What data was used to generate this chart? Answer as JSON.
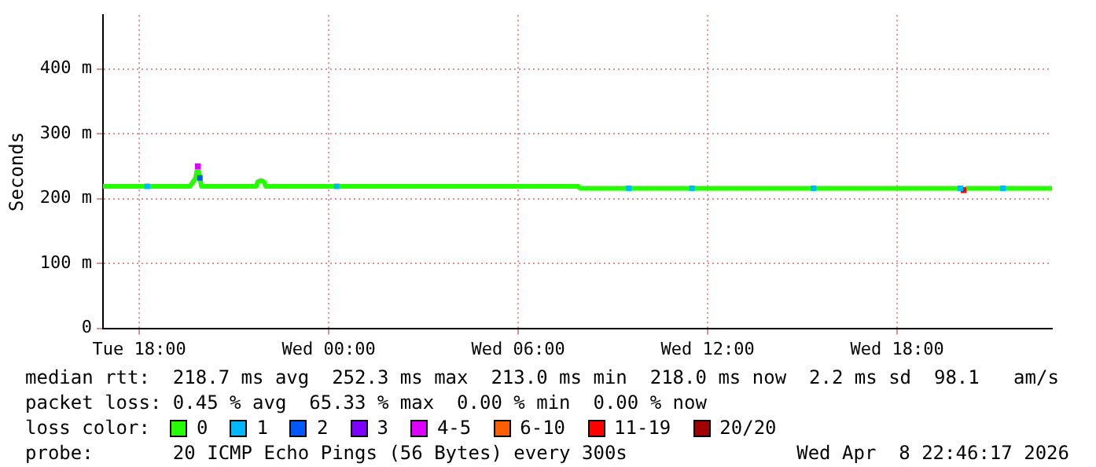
{
  "chart_data": {
    "type": "line",
    "ylabel": "Seconds",
    "xlim": [
      "2026-04-07T16:51",
      "2026-04-08T22:54"
    ],
    "ylim": [
      0,
      483
    ],
    "xticks": [
      {
        "value": "2026-04-07T18:00",
        "label": "Tue 18:00"
      },
      {
        "value": "2026-04-08T00:00",
        "label": "Wed 00:00"
      },
      {
        "value": "2026-04-08T06:00",
        "label": "Wed 06:00"
      },
      {
        "value": "2026-04-08T12:00",
        "label": "Wed 12:00"
      },
      {
        "value": "2026-04-08T18:00",
        "label": "Wed 18:00"
      }
    ],
    "yticks": [
      0,
      {
        "value": 100,
        "label": "100 m"
      },
      {
        "value": 200,
        "label": "200 m"
      },
      {
        "value": 300,
        "label": "300 m"
      },
      {
        "value": 400,
        "label": "400 m"
      }
    ],
    "grid": true,
    "legend": "bottom",
    "legend_title": "loss color:",
    "series": [
      {
        "name": "0",
        "color": "#26ff00",
        "x": [
          "2026-04-07T16:51",
          "2026-04-07T19:36",
          "2026-04-07T19:42",
          "2026-04-07T19:47",
          "2026-04-07T19:51",
          "2026-04-07T19:55",
          "2026-04-07T19:58",
          "2026-04-07T21:42",
          "2026-04-07T21:45",
          "2026-04-07T21:51",
          "2026-04-07T21:57",
          "2026-04-07T22:00",
          "2026-04-08T07:54",
          "2026-04-08T07:57",
          "2026-04-08T20:00",
          "2026-04-08T20:06",
          "2026-04-08T20:12",
          "2026-04-08T22:54"
        ],
        "values": [
          219,
          219,
          226,
          232,
          250,
          232,
          219,
          219,
          226,
          228,
          226,
          219,
          219,
          216,
          216,
          213,
          216,
          216
        ]
      },
      {
        "name": "1",
        "color": "#00b8ff",
        "type": "scatter",
        "marker": "square",
        "x": [
          "2026-04-07T18:15",
          "2026-04-08T00:15",
          "2026-04-08T09:30",
          "2026-04-08T11:30",
          "2026-04-08T15:21",
          "2026-04-08T20:00",
          "2026-04-08T21:21"
        ],
        "values": [
          219,
          219,
          216,
          216,
          216,
          216,
          216
        ]
      },
      {
        "name": "2",
        "color": "#0059ff",
        "type": "scatter",
        "marker": "square",
        "x": [
          "2026-04-07T19:55"
        ],
        "values": [
          232
        ]
      },
      {
        "name": "3",
        "color": "#7e00ff",
        "type": "scatter"
      },
      {
        "name": "4-5",
        "color": "#dd00ff",
        "type": "scatter",
        "marker": "square",
        "x": [
          "2026-04-07T19:51"
        ],
        "values": [
          250
        ]
      },
      {
        "name": "6-10",
        "color": "#ff5e00",
        "type": "scatter"
      },
      {
        "name": "11-19",
        "color": "#ff0000",
        "type": "scatter",
        "marker": "square",
        "x": [
          "2026-04-08T20:06"
        ],
        "values": [
          213
        ]
      },
      {
        "name": "20/20",
        "color": "#a10000",
        "type": "scatter"
      }
    ],
    "annotations": [
      "median rtt:  218.7 ms avg  252.3 ms max  213.0 ms min  218.0 ms now  2.2 ms sd  98.1   am/s",
      "packet loss: 0.45 % avg  65.33 % max  0.00 % min  0.00 % now",
      "probe:       20 ICMP Echo Pings (56 Bytes) every 300s",
      "Wed Apr  8 22:46:17 2026"
    ]
  }
}
